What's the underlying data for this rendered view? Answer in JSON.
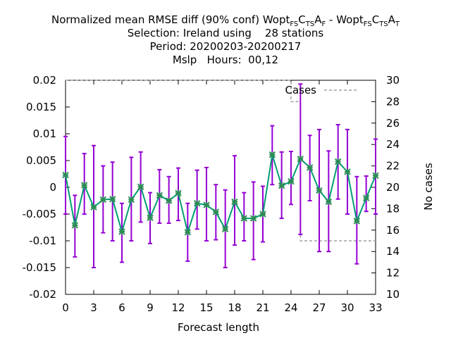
{
  "title": {
    "line1": {
      "main": "Normalized mean RMSE diff (90% conf) Wopt",
      "sub1": "FS",
      "mid1": "C",
      "sub2": "TS",
      "mid2": "A",
      "sub3": "F",
      "sep": " - Wopt",
      "sub4": "FS",
      "mid3": "C",
      "sub5": "TS",
      "mid4": "A",
      "sub6": "T"
    },
    "line2": "Selection: Ireland using    28 stations",
    "line3": "Period: 20200203-20200217",
    "line4": "Mslp   Hours:  00,12"
  },
  "chart_data": {
    "type": "line",
    "xlabel": "Forecast length",
    "ylabel_right": "No cases",
    "xlim": [
      0,
      33
    ],
    "ylim": [
      -0.02,
      0.02
    ],
    "y2lim": [
      10,
      30
    ],
    "x_ticks": [
      0,
      3,
      6,
      9,
      12,
      15,
      18,
      21,
      24,
      27,
      30,
      33
    ],
    "y_ticks": [
      "0.02",
      "0.015",
      "0.01",
      "0.005",
      "0",
      "-0.005",
      "-0.01",
      "-0.015",
      "-0.02"
    ],
    "y2_ticks": [
      "30",
      "28",
      "26",
      "24",
      "22",
      "20",
      "18",
      "16",
      "14",
      "12",
      "10"
    ],
    "legend": {
      "label": "Cases",
      "position": "top-right"
    },
    "colors": {
      "line": "#009e73",
      "errorbar": "#9400d3",
      "cases": "#a0a0a0",
      "marker": "#2e8b57"
    },
    "series": [
      {
        "x": [
          0,
          1,
          2,
          3,
          4,
          5,
          6,
          7,
          8,
          9,
          10,
          11,
          12,
          13,
          14,
          15,
          16,
          17,
          18,
          19,
          20,
          21,
          22,
          23,
          24,
          25,
          26,
          27,
          28,
          29,
          30,
          31,
          32,
          33
        ],
        "values": [
          0.0023,
          -0.0071,
          0.0004,
          -0.0037,
          -0.0023,
          -0.0022,
          -0.0083,
          -0.0023,
          0.0001,
          -0.0057,
          -0.0015,
          -0.0025,
          -0.0011,
          -0.0084,
          -0.003,
          -0.0033,
          -0.0046,
          -0.0078,
          -0.0027,
          -0.0058,
          -0.0058,
          -0.005,
          0.0061,
          0.0003,
          0.0011,
          0.0053,
          0.0037,
          -0.0006,
          -0.0027,
          0.0048,
          0.0029,
          -0.0063,
          -0.002,
          0.0022
        ],
        "err_low": [
          -0.005,
          -0.013,
          -0.005,
          -0.015,
          -0.0085,
          -0.01,
          -0.014,
          -0.01,
          -0.0065,
          -0.0105,
          -0.0067,
          -0.0067,
          -0.0062,
          -0.0138,
          -0.0078,
          -0.01,
          -0.0098,
          -0.015,
          -0.0108,
          -0.01,
          -0.0135,
          -0.0102,
          0.0005,
          -0.0058,
          -0.0032,
          -0.0088,
          -0.0025,
          -0.012,
          -0.012,
          -0.0022,
          -0.005,
          -0.0143,
          -0.0045,
          -0.005
        ],
        "err_high": [
          0.0095,
          -0.0015,
          0.0063,
          0.0078,
          0.004,
          0.0047,
          -0.003,
          0.0056,
          0.0066,
          -0.001,
          0.0033,
          0.002,
          0.0036,
          -0.003,
          0.0032,
          0.0037,
          0.0005,
          -0.0005,
          0.0059,
          -0.001,
          0.001,
          0.0002,
          0.0115,
          0.0066,
          0.0067,
          0.0193,
          0.0097,
          0.0108,
          0.0068,
          0.0117,
          0.0108,
          0.002,
          0.0021,
          0.009
        ]
      },
      {
        "name": "Cases",
        "x": [
          0,
          24,
          24,
          25,
          25,
          33
        ],
        "values": [
          30,
          30,
          28,
          28,
          15,
          15
        ]
      }
    ]
  }
}
